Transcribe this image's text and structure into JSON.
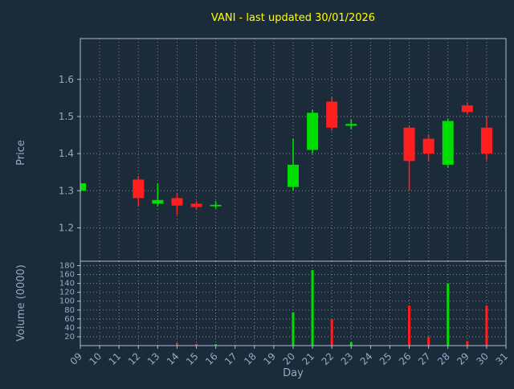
{
  "chart_data": {
    "type": "candlestick",
    "title": "VANI - last updated 30/01/2026",
    "xlabel": "Day",
    "price_axis": {
      "label": "Price",
      "ticks": [
        1.2,
        1.3,
        1.4,
        1.5,
        1.6
      ],
      "range": [
        1.11,
        1.71
      ]
    },
    "volume_axis": {
      "label": "Volume (0000)",
      "ticks": [
        20,
        40,
        60,
        80,
        100,
        120,
        140,
        160,
        180
      ],
      "range": [
        0,
        190
      ]
    },
    "x_axis": {
      "day_start": 9,
      "day_end": 31,
      "tick_labels": [
        "09",
        "10",
        "11",
        "12",
        "13",
        "14",
        "15",
        "16",
        "17",
        "18",
        "19",
        "20",
        "21",
        "22",
        "23",
        "24",
        "25",
        "26",
        "27",
        "28",
        "29",
        "30",
        "31"
      ]
    },
    "candles": [
      {
        "day": 9,
        "open": 1.3,
        "high": 1.322,
        "low": 1.295,
        "close": 1.32,
        "volume": 0
      },
      {
        "day": 12,
        "open": 1.33,
        "high": 1.34,
        "low": 1.26,
        "close": 1.28,
        "volume": 0
      },
      {
        "day": 13,
        "open": 1.265,
        "high": 1.32,
        "low": 1.258,
        "close": 1.275,
        "volume": 0
      },
      {
        "day": 14,
        "open": 1.28,
        "high": 1.292,
        "low": 1.235,
        "close": 1.26,
        "volume": 6
      },
      {
        "day": 15,
        "open": 1.265,
        "high": 1.272,
        "low": 1.25,
        "close": 1.256,
        "volume": 4
      },
      {
        "day": 16,
        "open": 1.258,
        "high": 1.272,
        "low": 1.252,
        "close": 1.262,
        "volume": 3
      },
      {
        "day": 20,
        "open": 1.31,
        "high": 1.44,
        "low": 1.3,
        "close": 1.37,
        "volume": 75
      },
      {
        "day": 21,
        "open": 1.41,
        "high": 1.518,
        "low": 1.4,
        "close": 1.51,
        "volume": 170
      },
      {
        "day": 22,
        "open": 1.54,
        "high": 1.552,
        "low": 1.462,
        "close": 1.47,
        "volume": 60
      },
      {
        "day": 23,
        "open": 1.475,
        "high": 1.492,
        "low": 1.465,
        "close": 1.48,
        "volume": 8
      },
      {
        "day": 26,
        "open": 1.47,
        "high": 1.474,
        "low": 1.3,
        "close": 1.38,
        "volume": 90
      },
      {
        "day": 27,
        "open": 1.44,
        "high": 1.452,
        "low": 1.38,
        "close": 1.4,
        "volume": 20
      },
      {
        "day": 28,
        "open": 1.37,
        "high": 1.495,
        "low": 1.362,
        "close": 1.488,
        "volume": 140
      },
      {
        "day": 29,
        "open": 1.53,
        "high": 1.538,
        "low": 1.505,
        "close": 1.512,
        "volume": 10
      },
      {
        "day": 30,
        "open": 1.47,
        "high": 1.5,
        "low": 1.382,
        "close": 1.4,
        "volume": 90
      }
    ],
    "colors": {
      "background": "#1c2b3a",
      "title": "#ffff00",
      "axis_text": "#93aac6",
      "grid": "#ffffff",
      "spine": "#aabdd2",
      "up": "#00dd00",
      "down": "#ff1f1f"
    },
    "grid": true,
    "legend": "none"
  }
}
